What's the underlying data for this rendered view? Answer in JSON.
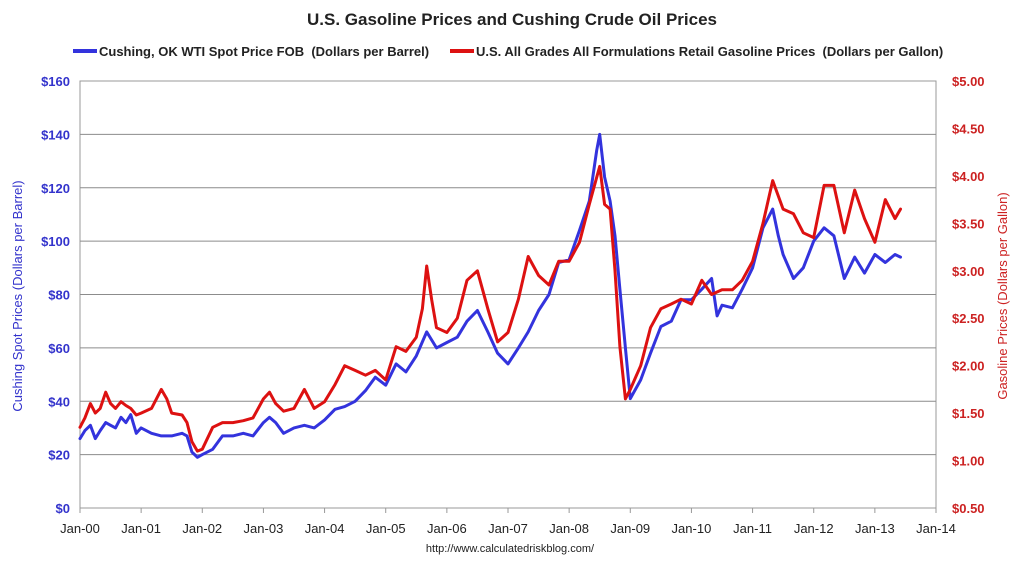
{
  "chart_data": {
    "type": "line",
    "title": "U.S. Gasoline Prices and Cushing Crude Oil Prices",
    "source": "http://www.calculatedriskblog.com/",
    "x_ticks": [
      "Jan-00",
      "Jan-01",
      "Jan-02",
      "Jan-03",
      "Jan-04",
      "Jan-05",
      "Jan-06",
      "Jan-07",
      "Jan-08",
      "Jan-09",
      "Jan-10",
      "Jan-11",
      "Jan-12",
      "Jan-13",
      "Jan-14"
    ],
    "x_range": [
      2000,
      2014
    ],
    "y_left": {
      "label": "Cushing Spot Prices (Dollars per Barrel)",
      "range": [
        0,
        160
      ],
      "ticks": [
        "$0",
        "$20",
        "$40",
        "$60",
        "$80",
        "$100",
        "$120",
        "$140",
        "$160"
      ]
    },
    "y_right": {
      "label": "Gasoline Prices (Dollars per Gallon)",
      "range": [
        0.5,
        5.0
      ],
      "ticks": [
        "$0.50",
        "$1.00",
        "$1.50",
        "$2.00",
        "$2.50",
        "$3.00",
        "$3.50",
        "$4.00",
        "$4.50",
        "$5.00"
      ]
    },
    "series": [
      {
        "name": "Cushing, OK WTI Spot Price FOB  (Dollars per Barrel)",
        "axis": "left",
        "color": "#3333dd",
        "x": [
          2000.0,
          2000.08,
          2000.17,
          2000.25,
          2000.33,
          2000.42,
          2000.5,
          2000.58,
          2000.67,
          2000.75,
          2000.83,
          2000.92,
          2001.0,
          2001.17,
          2001.33,
          2001.5,
          2001.67,
          2001.75,
          2001.83,
          2001.92,
          2002.0,
          2002.17,
          2002.33,
          2002.5,
          2002.67,
          2002.83,
          2003.0,
          2003.1,
          2003.2,
          2003.33,
          2003.5,
          2003.67,
          2003.83,
          2004.0,
          2004.17,
          2004.33,
          2004.5,
          2004.67,
          2004.83,
          2005.0,
          2005.17,
          2005.33,
          2005.5,
          2005.67,
          2005.83,
          2006.0,
          2006.17,
          2006.33,
          2006.5,
          2006.67,
          2006.83,
          2007.0,
          2007.17,
          2007.33,
          2007.5,
          2007.67,
          2007.83,
          2008.0,
          2008.17,
          2008.33,
          2008.45,
          2008.5,
          2008.58,
          2008.67,
          2008.75,
          2008.83,
          2008.92,
          2009.0,
          2009.17,
          2009.33,
          2009.5,
          2009.67,
          2009.83,
          2010.0,
          2010.17,
          2010.33,
          2010.42,
          2010.5,
          2010.67,
          2010.83,
          2011.0,
          2011.17,
          2011.33,
          2011.42,
          2011.5,
          2011.67,
          2011.83,
          2012.0,
          2012.17,
          2012.33,
          2012.5,
          2012.67,
          2012.83,
          2013.0,
          2013.17,
          2013.33,
          2013.42
        ],
        "values": [
          26,
          29,
          31,
          26,
          29,
          32,
          31,
          30,
          34,
          32,
          35,
          28,
          30,
          28,
          27,
          27,
          28,
          27,
          21,
          19,
          20,
          22,
          27,
          27,
          28,
          27,
          32,
          34,
          32,
          28,
          30,
          31,
          30,
          33,
          37,
          38,
          40,
          44,
          49,
          46,
          54,
          51,
          57,
          66,
          60,
          62,
          64,
          70,
          74,
          66,
          58,
          54,
          60,
          66,
          74,
          80,
          92,
          93,
          104,
          115,
          134,
          140,
          124,
          115,
          102,
          82,
          60,
          41,
          48,
          58,
          68,
          70,
          78,
          78,
          82,
          86,
          72,
          76,
          75,
          82,
          90,
          105,
          112,
          102,
          95,
          86,
          90,
          100,
          105,
          102,
          86,
          94,
          88,
          95,
          92,
          95,
          94
        ]
      },
      {
        "name": "U.S. All Grades All Formulations Retail Gasoline Prices  (Dollars per Gallon)",
        "axis": "right",
        "color": "#dd1111",
        "x": [
          2000.0,
          2000.08,
          2000.17,
          2000.25,
          2000.33,
          2000.42,
          2000.5,
          2000.58,
          2000.67,
          2000.75,
          2000.83,
          2000.92,
          2001.0,
          2001.17,
          2001.33,
          2001.42,
          2001.5,
          2001.67,
          2001.75,
          2001.83,
          2001.92,
          2002.0,
          2002.17,
          2002.33,
          2002.5,
          2002.67,
          2002.83,
          2003.0,
          2003.1,
          2003.2,
          2003.33,
          2003.5,
          2003.67,
          2003.83,
          2004.0,
          2004.17,
          2004.33,
          2004.5,
          2004.67,
          2004.83,
          2005.0,
          2005.17,
          2005.33,
          2005.5,
          2005.6,
          2005.67,
          2005.75,
          2005.83,
          2006.0,
          2006.17,
          2006.33,
          2006.5,
          2006.67,
          2006.83,
          2007.0,
          2007.17,
          2007.33,
          2007.5,
          2007.67,
          2007.83,
          2008.0,
          2008.17,
          2008.33,
          2008.5,
          2008.58,
          2008.67,
          2008.75,
          2008.83,
          2008.92,
          2009.0,
          2009.17,
          2009.33,
          2009.5,
          2009.67,
          2009.83,
          2010.0,
          2010.17,
          2010.33,
          2010.5,
          2010.67,
          2010.83,
          2011.0,
          2011.17,
          2011.33,
          2011.5,
          2011.67,
          2011.83,
          2012.0,
          2012.17,
          2012.33,
          2012.5,
          2012.67,
          2012.83,
          2013.0,
          2013.17,
          2013.33,
          2013.42
        ],
        "values": [
          1.35,
          1.45,
          1.6,
          1.5,
          1.55,
          1.72,
          1.6,
          1.55,
          1.62,
          1.58,
          1.55,
          1.48,
          1.5,
          1.55,
          1.75,
          1.65,
          1.5,
          1.48,
          1.4,
          1.2,
          1.1,
          1.12,
          1.35,
          1.4,
          1.4,
          1.42,
          1.45,
          1.65,
          1.72,
          1.6,
          1.52,
          1.55,
          1.75,
          1.55,
          1.62,
          1.8,
          2.0,
          1.95,
          1.9,
          1.95,
          1.85,
          2.2,
          2.15,
          2.3,
          2.6,
          3.05,
          2.7,
          2.4,
          2.35,
          2.5,
          2.9,
          3.0,
          2.6,
          2.25,
          2.35,
          2.7,
          3.15,
          2.95,
          2.85,
          3.1,
          3.1,
          3.3,
          3.7,
          4.1,
          3.7,
          3.65,
          3.0,
          2.2,
          1.65,
          1.75,
          2.0,
          2.4,
          2.6,
          2.65,
          2.7,
          2.65,
          2.9,
          2.75,
          2.8,
          2.8,
          2.9,
          3.1,
          3.5,
          3.95,
          3.65,
          3.6,
          3.4,
          3.35,
          3.9,
          3.9,
          3.4,
          3.85,
          3.55,
          3.3,
          3.75,
          3.55,
          3.65
        ]
      }
    ]
  }
}
